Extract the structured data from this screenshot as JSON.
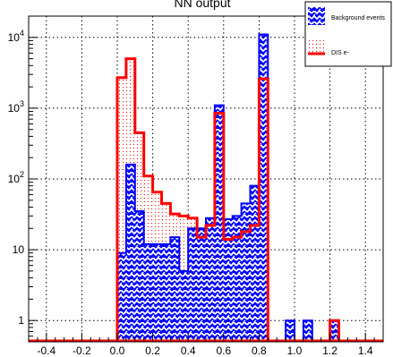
{
  "chart_data": {
    "type": "histogram",
    "title": "NN output",
    "xlabel": "",
    "ylabel": "",
    "x_scale": "linear",
    "y_scale": "log",
    "xlim": [
      -0.5,
      1.5
    ],
    "ylim": [
      0.5,
      20000
    ],
    "grid": true,
    "grid_style": "dotted",
    "legend_position": "top-right",
    "x_tick_labels": [
      "-0.4",
      "-0.2",
      "0.0",
      "0.2",
      "0.4",
      "0.6",
      "0.8",
      "1.0",
      "1.2",
      "1.4"
    ],
    "x_ticks": [
      -0.4,
      -0.2,
      0.0,
      0.2,
      0.4,
      0.6,
      0.8,
      1.0,
      1.2,
      1.4
    ],
    "y_tick_labels": [
      {
        "value": 1,
        "base": "1",
        "exp": ""
      },
      {
        "value": 10,
        "base": "10",
        "exp": ""
      },
      {
        "value": 100,
        "base": "10",
        "exp": "2"
      },
      {
        "value": 1000,
        "base": "10",
        "exp": "3"
      },
      {
        "value": 10000,
        "base": "10",
        "exp": "4"
      }
    ],
    "bin_width": 0.05,
    "series": [
      {
        "name": "Background events",
        "style": "filled-hatched",
        "color": "#0000ff",
        "fill_pattern": "blue-white-zigzag",
        "bins": [
          {
            "x": 0.0,
            "y": 9
          },
          {
            "x": 0.05,
            "y": 160
          },
          {
            "x": 0.1,
            "y": 35
          },
          {
            "x": 0.15,
            "y": 12
          },
          {
            "x": 0.2,
            "y": 12
          },
          {
            "x": 0.25,
            "y": 12
          },
          {
            "x": 0.3,
            "y": 15
          },
          {
            "x": 0.35,
            "y": 5
          },
          {
            "x": 0.4,
            "y": 20
          },
          {
            "x": 0.45,
            "y": 20
          },
          {
            "x": 0.5,
            "y": 28
          },
          {
            "x": 0.55,
            "y": 1100
          },
          {
            "x": 0.6,
            "y": 27
          },
          {
            "x": 0.65,
            "y": 30
          },
          {
            "x": 0.7,
            "y": 45
          },
          {
            "x": 0.75,
            "y": 80
          },
          {
            "x": 0.8,
            "y": 11000
          },
          {
            "x": 0.95,
            "y": 1
          },
          {
            "x": 1.05,
            "y": 1
          },
          {
            "x": 1.2,
            "y": 1
          }
        ]
      },
      {
        "name": "DIS e-",
        "style": "outline-dotted-fill",
        "color": "#ff0000",
        "bins": [
          {
            "x": 0.0,
            "y": 2700
          },
          {
            "x": 0.05,
            "y": 5000
          },
          {
            "x": 0.1,
            "y": 450
          },
          {
            "x": 0.15,
            "y": 110
          },
          {
            "x": 0.2,
            "y": 65
          },
          {
            "x": 0.25,
            "y": 45
          },
          {
            "x": 0.3,
            "y": 32
          },
          {
            "x": 0.35,
            "y": 30
          },
          {
            "x": 0.4,
            "y": 28
          },
          {
            "x": 0.45,
            "y": 15
          },
          {
            "x": 0.5,
            "y": 22
          },
          {
            "x": 0.55,
            "y": 850
          },
          {
            "x": 0.6,
            "y": 14
          },
          {
            "x": 0.65,
            "y": 15
          },
          {
            "x": 0.7,
            "y": 18
          },
          {
            "x": 0.75,
            "y": 22
          },
          {
            "x": 0.8,
            "y": 2600
          },
          {
            "x": 1.2,
            "y": 1
          }
        ]
      }
    ]
  },
  "legend": {
    "items": [
      {
        "label": "Background events"
      },
      {
        "label": "DIS e-"
      }
    ]
  }
}
